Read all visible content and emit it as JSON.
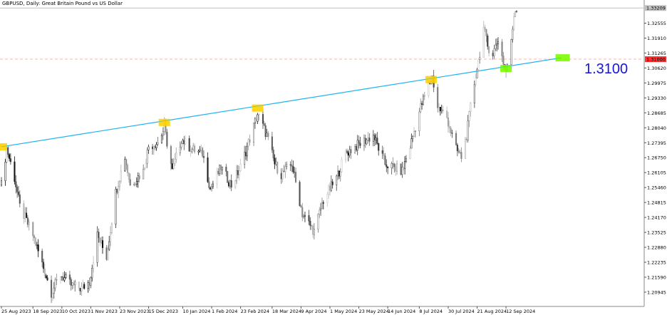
{
  "window": {
    "title": "GBPUSD, Daily:  Great Britain Pound vs US Dollar"
  },
  "chart_data": {
    "type": "candlestick",
    "symbol": "GBPUSD",
    "timeframe": "Daily",
    "ylim": [
      1.204,
      1.336
    ],
    "y_ticks": [
      "1.32555",
      "1.31910",
      "1.31265",
      "1.30620",
      "1.29975",
      "1.29330",
      "1.28685",
      "1.28040",
      "1.27395",
      "1.26750",
      "1.26105",
      "1.25460",
      "1.24815",
      "1.24170",
      "1.23525",
      "1.22880",
      "1.22235",
      "1.21590",
      "1.20945"
    ],
    "x_ticks": [
      {
        "date": "2023-08-25",
        "label": "25 Aug 2023"
      },
      {
        "date": "2023-09-18",
        "label": "18 Sep 2023"
      },
      {
        "date": "2023-10-10",
        "label": "10 Oct 2023"
      },
      {
        "date": "2023-11-01",
        "label": "1 Nov 2023"
      },
      {
        "date": "2023-11-23",
        "label": "23 Nov 2023"
      },
      {
        "date": "2023-12-15",
        "label": "15 Dec 2023"
      },
      {
        "date": "2024-01-10",
        "label": "10 Jan 2024"
      },
      {
        "date": "2024-02-01",
        "label": "1 Feb 2024"
      },
      {
        "date": "2024-02-23",
        "label": "23 Feb 2024"
      },
      {
        "date": "2024-03-18",
        "label": "18 Mar 2024"
      },
      {
        "date": "2024-04-09",
        "label": "9 Apr 2024"
      },
      {
        "date": "2024-05-01",
        "label": "1 May 2024"
      },
      {
        "date": "2024-05-23",
        "label": "23 May 2024"
      },
      {
        "date": "2024-06-14",
        "label": "14 Jun 2024"
      },
      {
        "date": "2024-07-08",
        "label": "8 Jul 2024"
      },
      {
        "date": "2024-07-30",
        "label": "30 Jul 2024"
      },
      {
        "date": "2024-08-21",
        "label": "21 Aug 2024"
      },
      {
        "date": "2024-09-12",
        "label": "12 Sep 2024"
      }
    ],
    "close_path": [
      [
        "2023-08-25",
        1.2556
      ],
      [
        "2023-08-29",
        1.2716
      ],
      [
        "2023-09-04",
        1.2587
      ],
      [
        "2023-09-08",
        1.2463
      ],
      [
        "2023-09-18",
        1.234
      ],
      [
        "2023-09-25",
        1.2217
      ],
      [
        "2023-10-02",
        1.2094
      ],
      [
        "2023-10-09",
        1.2171
      ],
      [
        "2023-10-17",
        1.2125
      ],
      [
        "2023-10-25",
        1.211
      ],
      [
        "2023-10-31",
        1.214
      ],
      [
        "2023-11-06",
        1.234
      ],
      [
        "2023-11-13",
        1.2248
      ],
      [
        "2023-11-20",
        1.2525
      ],
      [
        "2023-11-27",
        1.2679
      ],
      [
        "2023-12-01",
        1.2556
      ],
      [
        "2023-12-11",
        1.2617
      ],
      [
        "2023-12-15",
        1.2725
      ],
      [
        "2023-12-22",
        1.274
      ],
      [
        "2023-12-27",
        1.2802
      ],
      [
        "2024-01-02",
        1.2617
      ],
      [
        "2024-01-09",
        1.2756
      ],
      [
        "2024-01-17",
        1.271
      ],
      [
        "2024-01-25",
        1.2694
      ],
      [
        "2024-01-31",
        1.254
      ],
      [
        "2024-02-08",
        1.2633
      ],
      [
        "2024-02-16",
        1.2556
      ],
      [
        "2024-02-23",
        1.2633
      ],
      [
        "2024-03-07",
        1.2863
      ],
      [
        "2024-03-14",
        1.2771
      ],
      [
        "2024-03-20",
        1.2648
      ],
      [
        "2024-03-25",
        1.2602
      ],
      [
        "2024-04-02",
        1.2648
      ],
      [
        "2024-04-10",
        1.2433
      ],
      [
        "2024-04-19",
        1.2356
      ],
      [
        "2024-04-26",
        1.2494
      ],
      [
        "2024-05-06",
        1.2587
      ],
      [
        "2024-05-13",
        1.2694
      ],
      [
        "2024-05-21",
        1.2725
      ],
      [
        "2024-06-03",
        1.2771
      ],
      [
        "2024-06-12",
        1.2648
      ],
      [
        "2024-06-25",
        1.2617
      ],
      [
        "2024-07-01",
        1.2725
      ],
      [
        "2024-07-09",
        1.2894
      ],
      [
        "2024-07-15",
        1.2986
      ],
      [
        "2024-07-18",
        1.3023
      ],
      [
        "2024-07-22",
        1.2894
      ],
      [
        "2024-07-29",
        1.2848
      ],
      [
        "2024-08-05",
        1.271
      ],
      [
        "2024-08-09",
        1.2679
      ],
      [
        "2024-08-13",
        1.2771
      ],
      [
        "2024-08-16",
        1.2894
      ],
      [
        "2024-08-20",
        1.3033
      ],
      [
        "2024-08-22",
        1.3094
      ],
      [
        "2024-08-26",
        1.3233
      ],
      [
        "2024-08-29",
        1.3156
      ],
      [
        "2024-09-02",
        1.3125
      ],
      [
        "2024-09-06",
        1.3186
      ],
      [
        "2024-09-11",
        1.3063
      ],
      [
        "2024-09-12",
        1.3048
      ],
      [
        "2024-09-16",
        1.3171
      ],
      [
        "2024-09-18",
        1.3294
      ],
      [
        "2024-09-20",
        1.3325
      ]
    ],
    "trendline": {
      "color": "#1eb4f0",
      "start": [
        "2023-08-25",
        1.2722
      ],
      "end": [
        "2024-10-24",
        1.3106
      ]
    },
    "highlight_boxes": [
      {
        "date": "2023-08-25",
        "price": 1.2722,
        "color": "#ffd200"
      },
      {
        "date": "2023-12-27",
        "price": 1.2827,
        "color": "#ffd200"
      },
      {
        "date": "2024-03-07",
        "price": 1.2889,
        "color": "#ffd200"
      },
      {
        "date": "2024-07-17",
        "price": 1.3012,
        "color": "#ffd200"
      },
      {
        "date": "2024-09-12",
        "price": 1.306,
        "color": "#7cfc00"
      },
      {
        "date": "2024-10-24",
        "price": 1.3106,
        "color": "#7cfc00"
      }
    ],
    "level_line": {
      "price": 1.31,
      "label": "1.31000",
      "color": "#ff3030",
      "style": "dashed"
    },
    "bid_line": {
      "price": 1.33209,
      "label": "1.33209",
      "color": "#c0c0c0"
    },
    "annotation": {
      "text": "1.3100",
      "color": "#1414e6"
    }
  }
}
